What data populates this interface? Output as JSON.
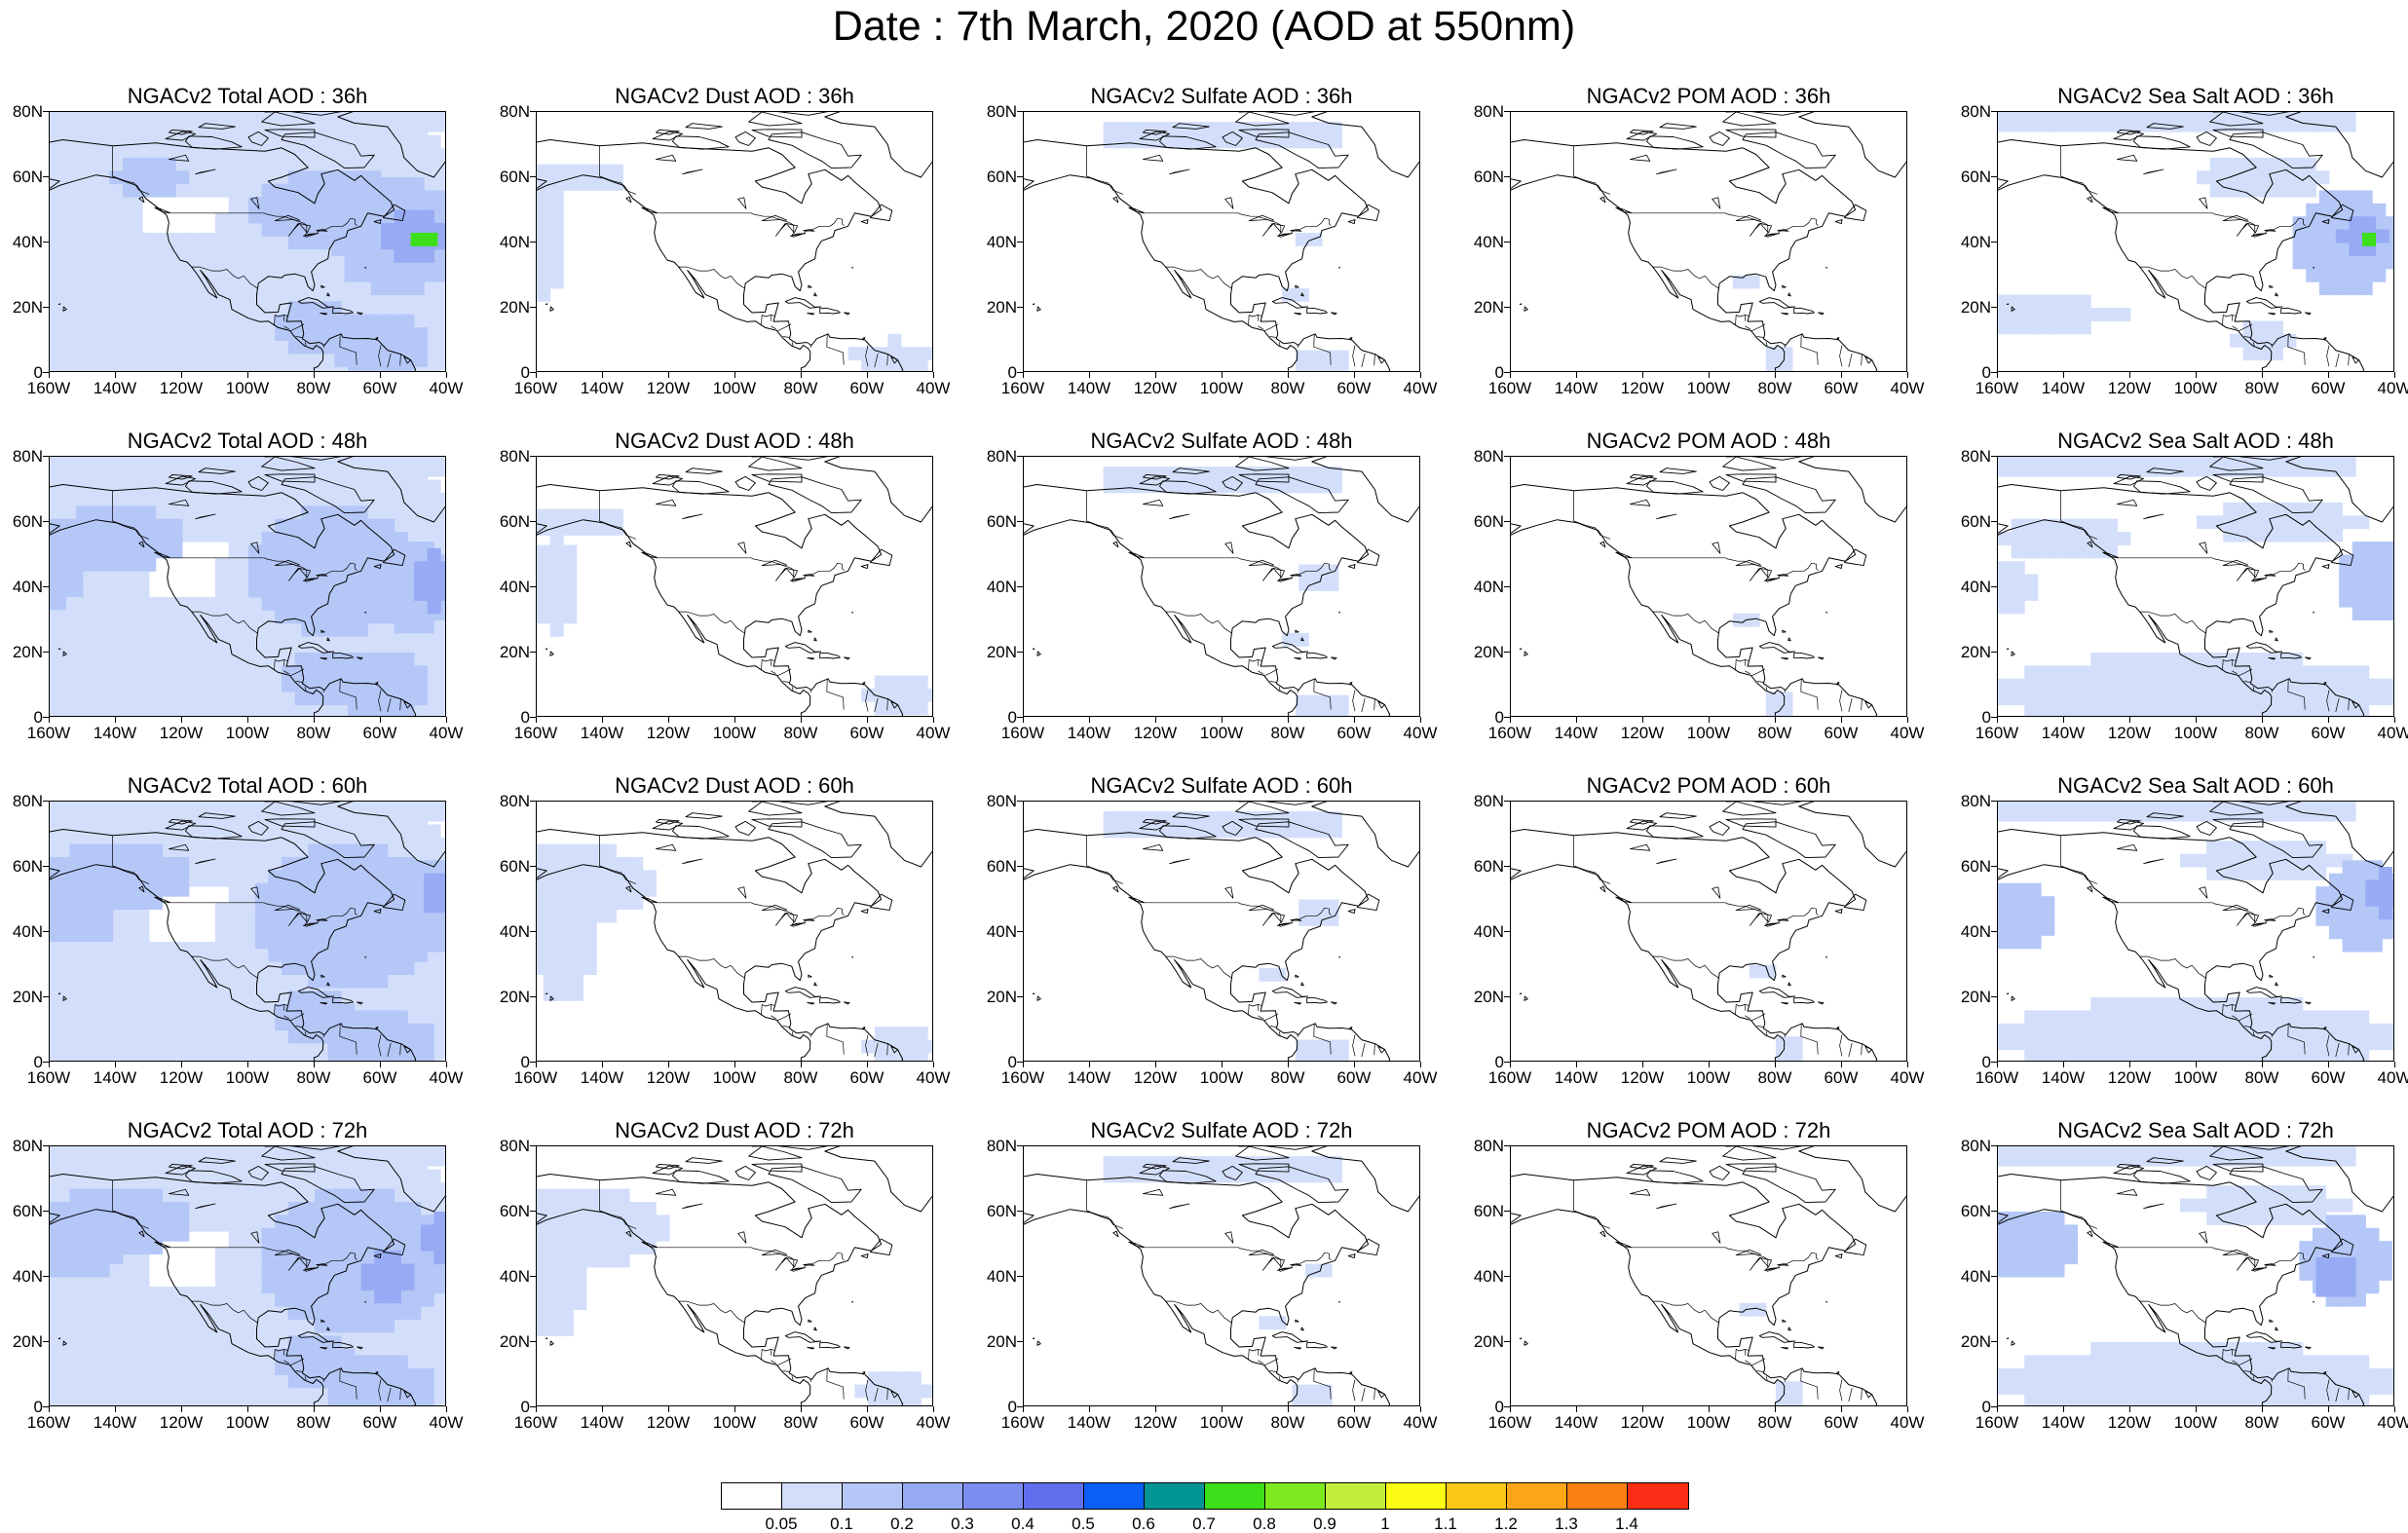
{
  "title": "Date : 7th March, 2020 (AOD at 550nm)",
  "axes": {
    "lat_labels": [
      "80N",
      "60N",
      "40N",
      "20N",
      "0"
    ],
    "lon_labels": [
      "160W",
      "140W",
      "120W",
      "100W",
      "80W",
      "60W",
      "40W"
    ]
  },
  "colors": {
    "water": "#ffffff",
    "coastline": "#000000"
  },
  "panels": [
    {
      "title": "NGACv2 Total AOD : 36h",
      "species": "total",
      "hour": "36h"
    },
    {
      "title": "NGACv2 Dust AOD : 36h",
      "species": "dust",
      "hour": "36h"
    },
    {
      "title": "NGACv2 Sulfate AOD : 36h",
      "species": "sulfate",
      "hour": "36h"
    },
    {
      "title": "NGACv2 POM AOD : 36h",
      "species": "pom",
      "hour": "36h"
    },
    {
      "title": "NGACv2 Sea Salt AOD : 36h",
      "species": "seasalt",
      "hour": "36h"
    },
    {
      "title": "NGACv2 Total AOD : 48h",
      "species": "total",
      "hour": "48h"
    },
    {
      "title": "NGACv2 Dust AOD : 48h",
      "species": "dust",
      "hour": "48h"
    },
    {
      "title": "NGACv2 Sulfate AOD : 48h",
      "species": "sulfate",
      "hour": "48h"
    },
    {
      "title": "NGACv2 POM AOD : 48h",
      "species": "pom",
      "hour": "48h"
    },
    {
      "title": "NGACv2 Sea Salt AOD : 48h",
      "species": "seasalt",
      "hour": "48h"
    },
    {
      "title": "NGACv2 Total AOD : 60h",
      "species": "total",
      "hour": "60h"
    },
    {
      "title": "NGACv2 Dust AOD : 60h",
      "species": "dust",
      "hour": "60h"
    },
    {
      "title": "NGACv2 Sulfate AOD : 60h",
      "species": "sulfate",
      "hour": "60h"
    },
    {
      "title": "NGACv2 POM AOD : 60h",
      "species": "pom",
      "hour": "60h"
    },
    {
      "title": "NGACv2 Sea Salt AOD : 60h",
      "species": "seasalt",
      "hour": "60h"
    },
    {
      "title": "NGACv2 Total AOD : 72h",
      "species": "total",
      "hour": "72h"
    },
    {
      "title": "NGACv2 Dust AOD : 72h",
      "species": "dust",
      "hour": "72h"
    },
    {
      "title": "NGACv2 Sulfate AOD : 72h",
      "species": "sulfate",
      "hour": "72h"
    },
    {
      "title": "NGACv2 POM AOD : 72h",
      "species": "pom",
      "hour": "72h"
    },
    {
      "title": "NGACv2 Sea Salt  AOD : 72h",
      "species": "seasalt",
      "hour": "72h"
    }
  ],
  "colorbar": {
    "labels": [
      "0.05",
      "0.1",
      "0.2",
      "0.3",
      "0.4",
      "0.5",
      "0.6",
      "0.7",
      "0.8",
      "0.9",
      "1",
      "1.1",
      "1.2",
      "1.3",
      "1.4"
    ],
    "colors": [
      "#ffffff",
      "#d3dffa",
      "#b4c7f7",
      "#97abf4",
      "#7b8ef0",
      "#5f6fee",
      "#0b5ff7",
      "#009494",
      "#3ddf1a",
      "#7fe91f",
      "#c2ef3a",
      "#fbfb13",
      "#fbc816",
      "#fca617",
      "#fb7f12",
      "#fa2d16"
    ]
  }
}
